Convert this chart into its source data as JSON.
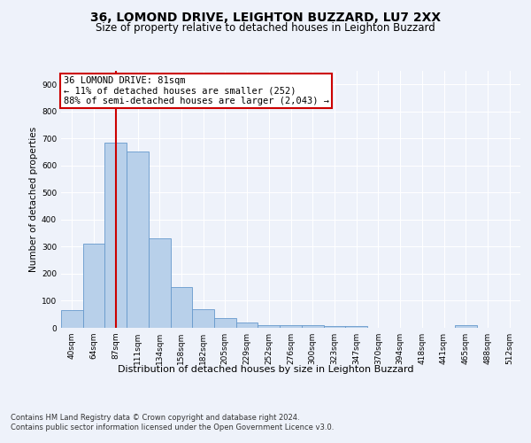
{
  "title1": "36, LOMOND DRIVE, LEIGHTON BUZZARD, LU7 2XX",
  "title2": "Size of property relative to detached houses in Leighton Buzzard",
  "xlabel": "Distribution of detached houses by size in Leighton Buzzard",
  "ylabel": "Number of detached properties",
  "footnote": "Contains HM Land Registry data © Crown copyright and database right 2024.\nContains public sector information licensed under the Open Government Licence v3.0.",
  "bar_labels": [
    "40sqm",
    "64sqm",
    "87sqm",
    "111sqm",
    "134sqm",
    "158sqm",
    "182sqm",
    "205sqm",
    "229sqm",
    "252sqm",
    "276sqm",
    "300sqm",
    "323sqm",
    "347sqm",
    "370sqm",
    "394sqm",
    "418sqm",
    "441sqm",
    "465sqm",
    "488sqm",
    "512sqm"
  ],
  "bar_values": [
    65,
    310,
    685,
    653,
    330,
    150,
    68,
    35,
    20,
    10,
    10,
    10,
    8,
    5,
    0,
    0,
    0,
    0,
    10,
    0,
    0
  ],
  "bar_color": "#b8d0ea",
  "bar_edge_color": "#6699cc",
  "annotation_line_color": "#cc0000",
  "annotation_box_text": "36 LOMOND DRIVE: 81sqm\n← 11% of detached houses are smaller (252)\n88% of semi-detached houses are larger (2,043) →",
  "annotation_box_color": "#cc0000",
  "ylim": [
    0,
    950
  ],
  "yticks": [
    0,
    100,
    200,
    300,
    400,
    500,
    600,
    700,
    800,
    900
  ],
  "bg_color": "#eef2fa",
  "plot_bg_color": "#eef2fa",
  "grid_color": "#ffffff",
  "title1_fontsize": 10,
  "title2_fontsize": 8.5,
  "axis_label_fontsize": 7.5,
  "tick_fontsize": 6.5,
  "annotation_fontsize": 7.5,
  "xlabel_fontsize": 8,
  "footnote_fontsize": 6
}
